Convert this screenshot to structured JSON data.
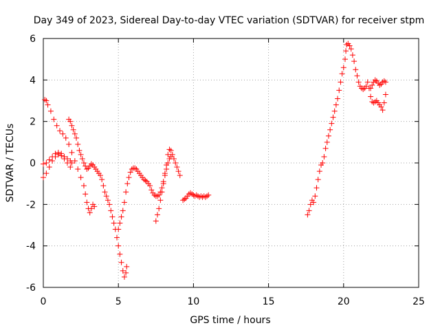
{
  "chart_data": {
    "type": "scatter",
    "title": "Day 349 of 2023, Sidereal Day-to-day VTEC variation (SDTVAR) for receiver stpm",
    "xlabel": "GPS time / hours",
    "ylabel": "SDTVAR / TECUs",
    "xlim": [
      0,
      25
    ],
    "ylim": [
      -6,
      6
    ],
    "xticks": [
      0,
      5,
      10,
      15,
      20,
      25
    ],
    "yticks": [
      -6,
      -4,
      -2,
      0,
      2,
      4,
      6
    ],
    "grid": true,
    "marker": "+",
    "color": "#ff0000",
    "series": [
      {
        "points": [
          [
            0.0,
            -0.7
          ],
          [
            0.2,
            -0.5
          ],
          [
            0.4,
            -0.2
          ],
          [
            0.6,
            0.1
          ],
          [
            0.8,
            0.3
          ],
          [
            1.0,
            0.4
          ],
          [
            1.2,
            0.35
          ],
          [
            1.4,
            0.2
          ],
          [
            1.6,
            0.0
          ],
          [
            1.8,
            -0.2
          ],
          [
            0.1,
            3.05
          ],
          [
            0.2,
            3.0
          ],
          [
            0.3,
            2.8
          ],
          [
            0.5,
            2.5
          ],
          [
            0.7,
            2.1
          ],
          [
            0.9,
            1.8
          ],
          [
            1.1,
            1.55
          ],
          [
            1.3,
            1.4
          ],
          [
            1.5,
            1.2
          ],
          [
            1.7,
            0.9
          ],
          [
            1.9,
            0.5
          ],
          [
            2.1,
            0.1
          ],
          [
            2.3,
            -0.3
          ],
          [
            2.5,
            -0.7
          ],
          [
            2.7,
            -1.1
          ],
          [
            2.8,
            -1.5
          ],
          [
            2.9,
            -1.9
          ],
          [
            3.0,
            -2.2
          ],
          [
            3.1,
            -2.4
          ],
          [
            3.2,
            -2.2
          ],
          [
            3.3,
            -2.0
          ],
          [
            3.4,
            -2.1
          ],
          [
            0.0,
            -0.05
          ],
          [
            0.2,
            0.0
          ],
          [
            0.4,
            0.15
          ],
          [
            0.6,
            0.3
          ],
          [
            0.8,
            0.45
          ],
          [
            1.0,
            0.5
          ],
          [
            1.2,
            0.45
          ],
          [
            1.4,
            0.3
          ],
          [
            1.6,
            0.2
          ],
          [
            1.8,
            0.1
          ],
          [
            1.9,
            0.0
          ],
          [
            1.7,
            2.1
          ],
          [
            1.8,
            2.0
          ],
          [
            1.9,
            1.8
          ],
          [
            2.0,
            1.6
          ],
          [
            2.1,
            1.4
          ],
          [
            2.2,
            1.2
          ],
          [
            2.3,
            0.9
          ],
          [
            2.4,
            0.6
          ],
          [
            2.5,
            0.4
          ],
          [
            2.6,
            0.2
          ],
          [
            2.7,
            0.0
          ],
          [
            2.8,
            -0.15
          ],
          [
            2.9,
            -0.3
          ],
          [
            3.0,
            -0.25
          ],
          [
            3.1,
            -0.15
          ],
          [
            3.2,
            -0.05
          ],
          [
            3.3,
            -0.1
          ],
          [
            3.4,
            -0.2
          ],
          [
            3.5,
            -0.3
          ],
          [
            3.6,
            -0.4
          ],
          [
            3.7,
            -0.5
          ],
          [
            3.8,
            -0.6
          ],
          [
            3.9,
            -0.8
          ],
          [
            4.0,
            -1.1
          ],
          [
            4.1,
            -1.4
          ],
          [
            4.2,
            -1.6
          ],
          [
            4.3,
            -1.8
          ],
          [
            4.4,
            -2.0
          ],
          [
            4.5,
            -2.3
          ],
          [
            4.6,
            -2.6
          ],
          [
            4.7,
            -2.9
          ],
          [
            4.8,
            -3.2
          ],
          [
            4.9,
            -3.6
          ],
          [
            5.0,
            -4.0
          ],
          [
            5.1,
            -4.4
          ],
          [
            5.2,
            -4.8
          ],
          [
            5.3,
            -5.2
          ],
          [
            5.4,
            -5.5
          ],
          [
            5.5,
            -5.3
          ],
          [
            5.55,
            -5.0
          ],
          [
            5.0,
            -3.2
          ],
          [
            5.1,
            -2.9
          ],
          [
            5.2,
            -2.6
          ],
          [
            5.3,
            -2.3
          ],
          [
            5.4,
            -1.9
          ],
          [
            5.5,
            -1.4
          ],
          [
            5.6,
            -1.0
          ],
          [
            5.7,
            -0.7
          ],
          [
            5.8,
            -0.45
          ],
          [
            5.9,
            -0.3
          ],
          [
            6.0,
            -0.25
          ],
          [
            6.1,
            -0.25
          ],
          [
            6.2,
            -0.3
          ],
          [
            6.3,
            -0.4
          ],
          [
            6.4,
            -0.5
          ],
          [
            6.5,
            -0.6
          ],
          [
            6.6,
            -0.7
          ],
          [
            6.7,
            -0.8
          ],
          [
            6.8,
            -0.85
          ],
          [
            6.9,
            -0.9
          ],
          [
            7.0,
            -1.0
          ],
          [
            7.1,
            -1.1
          ],
          [
            7.2,
            -1.3
          ],
          [
            7.3,
            -1.45
          ],
          [
            7.4,
            -1.55
          ],
          [
            7.5,
            -1.6
          ],
          [
            7.6,
            -1.6
          ],
          [
            7.7,
            -1.55
          ],
          [
            7.8,
            -1.4
          ],
          [
            7.9,
            -1.2
          ],
          [
            8.0,
            -0.9
          ],
          [
            8.1,
            -0.5
          ],
          [
            8.2,
            -0.1
          ],
          [
            8.3,
            0.4
          ],
          [
            8.4,
            0.65
          ],
          [
            8.5,
            0.6
          ],
          [
            8.6,
            0.4
          ],
          [
            8.7,
            0.2
          ],
          [
            8.8,
            0.0
          ],
          [
            8.9,
            -0.2
          ],
          [
            9.0,
            -0.4
          ],
          [
            9.1,
            -0.6
          ],
          [
            7.5,
            -2.8
          ],
          [
            7.6,
            -2.5
          ],
          [
            7.7,
            -2.2
          ],
          [
            7.8,
            -1.8
          ],
          [
            7.9,
            -1.4
          ],
          [
            8.0,
            -1.0
          ],
          [
            8.1,
            -0.6
          ],
          [
            8.2,
            -0.3
          ],
          [
            8.3,
            0.0
          ],
          [
            8.4,
            0.2
          ],
          [
            8.5,
            0.3
          ],
          [
            9.3,
            -1.8
          ],
          [
            9.4,
            -1.75
          ],
          [
            9.5,
            -1.7
          ],
          [
            9.6,
            -1.6
          ],
          [
            9.7,
            -1.5
          ],
          [
            9.8,
            -1.45
          ],
          [
            9.9,
            -1.5
          ],
          [
            10.0,
            -1.55
          ],
          [
            10.1,
            -1.6
          ],
          [
            10.2,
            -1.55
          ],
          [
            10.3,
            -1.6
          ],
          [
            10.4,
            -1.65
          ],
          [
            10.5,
            -1.6
          ],
          [
            10.6,
            -1.65
          ],
          [
            10.7,
            -1.6
          ],
          [
            10.8,
            -1.65
          ],
          [
            10.9,
            -1.6
          ],
          [
            11.0,
            -1.55
          ],
          [
            17.6,
            -2.5
          ],
          [
            17.7,
            -2.3
          ],
          [
            17.8,
            -2.0
          ],
          [
            17.9,
            -1.8
          ],
          [
            18.0,
            -1.9
          ],
          [
            18.1,
            -1.6
          ],
          [
            18.2,
            -1.2
          ],
          [
            18.3,
            -0.8
          ],
          [
            18.4,
            -0.4
          ],
          [
            18.5,
            -0.1
          ],
          [
            18.6,
            0.0
          ],
          [
            18.7,
            0.3
          ],
          [
            18.8,
            0.7
          ],
          [
            18.9,
            1.0
          ],
          [
            19.0,
            1.3
          ],
          [
            19.1,
            1.6
          ],
          [
            19.2,
            1.9
          ],
          [
            19.3,
            2.2
          ],
          [
            19.4,
            2.5
          ],
          [
            19.5,
            2.8
          ],
          [
            19.6,
            3.1
          ],
          [
            19.7,
            3.5
          ],
          [
            19.8,
            3.9
          ],
          [
            19.9,
            4.3
          ],
          [
            20.0,
            4.6
          ],
          [
            20.1,
            5.0
          ],
          [
            20.15,
            5.4
          ],
          [
            20.2,
            5.7
          ],
          [
            20.3,
            5.75
          ],
          [
            20.4,
            5.65
          ],
          [
            20.5,
            5.5
          ],
          [
            20.6,
            5.2
          ],
          [
            20.7,
            4.9
          ],
          [
            20.8,
            4.5
          ],
          [
            20.9,
            4.2
          ],
          [
            21.0,
            3.9
          ],
          [
            21.1,
            3.7
          ],
          [
            21.2,
            3.6
          ],
          [
            21.3,
            3.55
          ],
          [
            21.4,
            3.6
          ],
          [
            21.5,
            3.7
          ],
          [
            21.6,
            3.9
          ],
          [
            21.7,
            3.6
          ],
          [
            21.8,
            3.2
          ],
          [
            21.9,
            2.95
          ],
          [
            22.0,
            2.9
          ],
          [
            22.1,
            2.95
          ],
          [
            22.2,
            3.0
          ],
          [
            22.3,
            2.9
          ],
          [
            22.4,
            2.8
          ],
          [
            22.5,
            2.7
          ],
          [
            22.6,
            2.55
          ],
          [
            22.7,
            2.9
          ],
          [
            22.8,
            3.3
          ],
          [
            21.8,
            3.6
          ],
          [
            21.9,
            3.75
          ],
          [
            22.0,
            3.9
          ],
          [
            22.1,
            4.0
          ],
          [
            22.2,
            3.95
          ],
          [
            22.3,
            3.85
          ],
          [
            22.4,
            3.75
          ],
          [
            22.5,
            3.8
          ],
          [
            22.6,
            3.9
          ],
          [
            22.7,
            3.95
          ],
          [
            22.8,
            3.9
          ]
        ]
      }
    ]
  }
}
